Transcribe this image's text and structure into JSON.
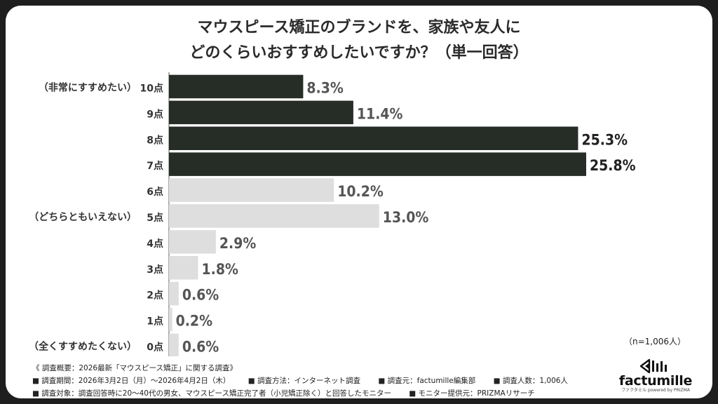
{
  "title_lines": [
    "マウスピース矯正のブランドを、家族や友人に",
    "どのくらいおすすめしたいですか？（単一回答）"
  ],
  "chart_data": {
    "type": "bar",
    "orientation": "horizontal",
    "categories": [
      "10点",
      "9点",
      "8点",
      "7点",
      "6点",
      "5点",
      "4点",
      "3点",
      "2点",
      "1点",
      "0点"
    ],
    "values": [
      8.3,
      11.4,
      25.3,
      25.8,
      10.2,
      13.0,
      2.9,
      1.8,
      0.6,
      0.2,
      0.6
    ],
    "value_labels": [
      "8.3%",
      "11.4%",
      "25.3%",
      "25.8%",
      "10.2%",
      "13.0%",
      "2.9%",
      "1.8%",
      "0.6%",
      "0.2%",
      "0.6%"
    ],
    "group_labels": [
      {
        "category": "10点",
        "text": "（非常にすすめたい）"
      },
      {
        "category": "5点",
        "text": "（どちらともいえない）"
      },
      {
        "category": "0点",
        "text": "（全くすすめたくない）"
      }
    ],
    "highlight_categories": [
      "10点",
      "9点",
      "8点",
      "7点"
    ],
    "colors": {
      "highlight": "#262d27",
      "normal": "#dedede",
      "value_text": "#555555",
      "highlight_value_text": "#222222"
    },
    "xlim": [
      0,
      25.8
    ],
    "grid": false
  },
  "n_note": "（n=1,006人）",
  "footer": {
    "heading": "《 調査概要：2026最新「マウスピース矯正」に関する調査》",
    "row2": [
      "■ 調査期間：2026年3月2日（月）～2026年4月2日（木）",
      "■ 調査方法：インターネット調査",
      "■ 調査元：factumille編集部",
      "■ 調査人数：1,006人"
    ],
    "row3": [
      "■ 調査対象：調査回答時に20～40代の男女、マウスピース矯正完了者（小児矯正除く）と回答したモニター",
      "■ モニター提供元：PRIZMAリサーチ"
    ]
  },
  "brand": {
    "name": "factumille",
    "sub": "ファクタミル",
    "powered": "powered by PRIZMA"
  }
}
